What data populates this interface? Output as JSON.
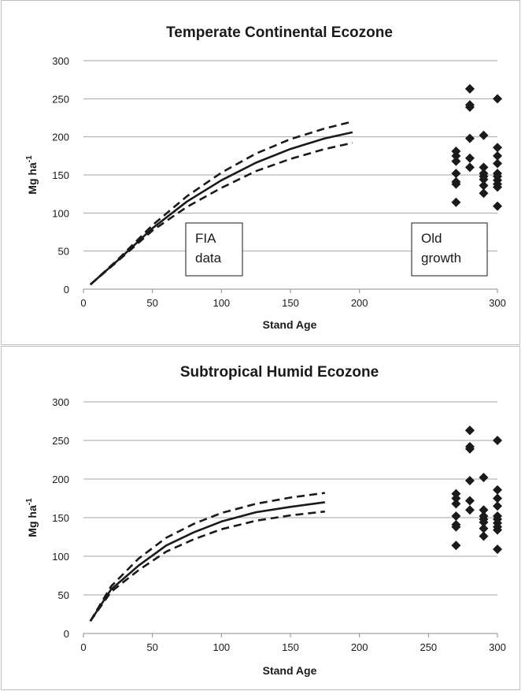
{
  "chart_data": [
    {
      "type": "line",
      "title": "Temperate Continental Ecozone",
      "xlabel": "Stand Age",
      "ylabel_main": "Mg ha",
      "ylabel_sup": "-1",
      "xlim": [
        0,
        300
      ],
      "ylim": [
        0,
        300
      ],
      "x_ticks": [
        0,
        50,
        100,
        150,
        200,
        300
      ],
      "y_ticks": [
        0,
        50,
        100,
        150,
        200,
        250,
        300
      ],
      "grid": "horizontal",
      "annotations": [
        {
          "lines": [
            "FIA",
            "data"
          ]
        },
        {
          "lines": [
            "Old",
            "growth"
          ]
        }
      ],
      "series": [
        {
          "style": "solid",
          "x": [
            5,
            25,
            50,
            75,
            100,
            125,
            150,
            175,
            195
          ],
          "y": [
            6,
            38,
            80,
            115,
            143,
            166,
            184,
            198,
            206
          ]
        },
        {
          "style": "dashed",
          "x": [
            5,
            25,
            50,
            75,
            100,
            125,
            150,
            175,
            195
          ],
          "y": [
            6,
            39,
            84,
            122,
            153,
            178,
            197,
            211,
            220
          ]
        },
        {
          "style": "dashed",
          "x": [
            5,
            25,
            50,
            75,
            100,
            125,
            150,
            175,
            195
          ],
          "y": [
            6,
            37,
            77,
            108,
            133,
            155,
            171,
            184,
            192
          ]
        },
        {
          "style": "markers",
          "marker": "diamond",
          "x": [
            270,
            270,
            270,
            270,
            270,
            270,
            270,
            280,
            280,
            280,
            280,
            280,
            280,
            280,
            290,
            290,
            290,
            290,
            290,
            290,
            290,
            300,
            300,
            300,
            300,
            300,
            300,
            300,
            300,
            300,
            300
          ],
          "y": [
            114,
            138,
            141,
            152,
            168,
            175,
            181,
            160,
            172,
            198,
            239,
            242,
            263,
            263,
            126,
            136,
            144,
            152,
            160,
            202,
            148,
            109,
            134,
            138,
            143,
            148,
            152,
            165,
            175,
            186,
            250
          ]
        }
      ]
    },
    {
      "type": "line",
      "title": "Subtropical Humid Ecozone",
      "xlabel": "Stand Age",
      "ylabel_main": "Mg ha",
      "ylabel_sup": "-1",
      "xlim": [
        0,
        300
      ],
      "ylim": [
        0,
        300
      ],
      "x_ticks": [
        0,
        50,
        100,
        150,
        200,
        250,
        300
      ],
      "y_ticks": [
        0,
        50,
        100,
        150,
        200,
        250,
        300
      ],
      "grid": "horizontal",
      "series": [
        {
          "style": "solid",
          "x": [
            5,
            20,
            40,
            60,
            80,
            100,
            125,
            150,
            175
          ],
          "y": [
            16,
            57,
            88,
            114,
            131,
            145,
            157,
            164,
            170
          ]
        },
        {
          "style": "dashed",
          "x": [
            5,
            20,
            40,
            60,
            80,
            100,
            125,
            150,
            175
          ],
          "y": [
            16,
            61,
            97,
            124,
            142,
            156,
            168,
            176,
            182
          ]
        },
        {
          "style": "dashed",
          "x": [
            5,
            20,
            40,
            60,
            80,
            100,
            125,
            150,
            175
          ],
          "y": [
            16,
            54,
            82,
            106,
            122,
            135,
            146,
            153,
            158
          ]
        },
        {
          "style": "markers",
          "marker": "diamond",
          "x": [
            270,
            270,
            270,
            270,
            270,
            270,
            270,
            280,
            280,
            280,
            280,
            280,
            280,
            280,
            290,
            290,
            290,
            290,
            290,
            290,
            290,
            300,
            300,
            300,
            300,
            300,
            300,
            300,
            300,
            300,
            300
          ],
          "y": [
            114,
            138,
            141,
            152,
            168,
            175,
            181,
            160,
            172,
            198,
            239,
            242,
            263,
            263,
            126,
            136,
            144,
            152,
            160,
            202,
            148,
            109,
            134,
            138,
            143,
            148,
            152,
            165,
            175,
            186,
            250
          ]
        }
      ]
    }
  ]
}
